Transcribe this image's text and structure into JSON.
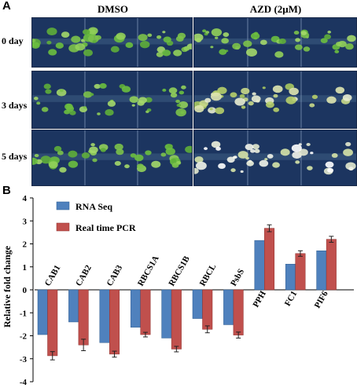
{
  "panel_a": {
    "label": "A",
    "columns": [
      "DMSO",
      "AZD (2μM)"
    ],
    "rows": [
      "0 day",
      "3 days",
      "5 days"
    ]
  },
  "panel_b": {
    "label": "B"
  },
  "colors": {
    "rna_seq": "#4f81bd",
    "real_time_pcr": "#c0504d",
    "photo_bg": "#1c3560"
  },
  "chart_data": {
    "type": "bar",
    "title": "",
    "ylabel": "Relative fold change",
    "xlabel": "",
    "ylim": [
      -4,
      4
    ],
    "yticks": [
      4,
      3,
      2,
      1,
      0,
      -1,
      -2,
      -3,
      -4
    ],
    "categories": [
      "CAB1",
      "CAB2",
      "CAB3",
      "RBCS1A",
      "RBCS1B",
      "RBCL",
      "PsbS",
      "PPH",
      "FC1",
      "PIF6"
    ],
    "legend_position": "top-left",
    "series": [
      {
        "name": "RNA Seq",
        "values": [
          -1.95,
          -1.4,
          -2.3,
          -1.63,
          -2.1,
          -1.25,
          -1.52,
          2.15,
          1.12,
          1.7
        ],
        "errors": [
          0,
          0,
          0,
          0,
          0,
          0,
          0,
          0,
          0,
          0
        ]
      },
      {
        "name": "Real time PCR",
        "values": [
          -2.87,
          -2.4,
          -2.8,
          -1.95,
          -2.58,
          -1.72,
          -1.97,
          2.68,
          1.58,
          2.2
        ],
        "errors": [
          0.18,
          0.25,
          0.13,
          0.1,
          0.12,
          0.15,
          0.13,
          0.15,
          0.12,
          0.13
        ]
      }
    ]
  }
}
